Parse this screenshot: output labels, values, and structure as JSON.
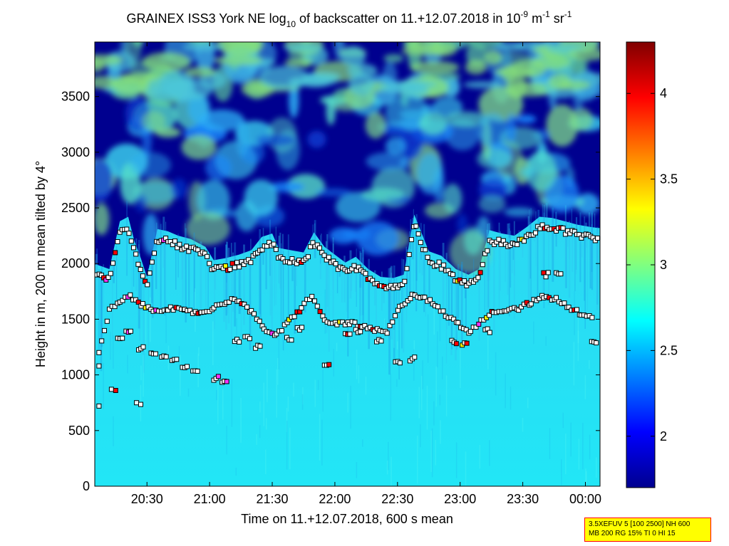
{
  "chart_data": {
    "type": "heatmap",
    "title": {
      "parts": [
        {
          "t": "GRAINEX ISS3 York NE log"
        },
        {
          "t": "10",
          "sub": true
        },
        {
          "t": " of backscatter on 11.+12.07.2018 in 10"
        },
        {
          "t": "-9",
          "sup": true
        },
        {
          "t": " m"
        },
        {
          "t": "-1",
          "sup": true
        },
        {
          "t": " sr"
        },
        {
          "t": "-1",
          "sup": true
        }
      ]
    },
    "xlabel": "Time on 11.+12.07.2018, 600 s mean",
    "ylabel": "Height in m, 200 m mean tilted by 4°",
    "x_ticks": [
      "20:30",
      "21:00",
      "21:30",
      "22:00",
      "22:30",
      "23:00",
      "23:30",
      "00:00"
    ],
    "x_tick_minutes": [
      1230,
      1260,
      1290,
      1320,
      1350,
      1380,
      1410,
      1440
    ],
    "xlim_minutes": [
      1205,
      1447
    ],
    "y_ticks": [
      0,
      500,
      1000,
      1500,
      2000,
      2500,
      3000,
      3500
    ],
    "ylim": [
      0,
      3990
    ],
    "colorbar": {
      "ticks": [
        "2",
        "2.5",
        "3",
        "3.5",
        "4"
      ],
      "tick_values": [
        2,
        2.5,
        3,
        3.5,
        4
      ],
      "lim": [
        1.7,
        4.3
      ],
      "colormap": "jet"
    },
    "layer_boundaries": [
      {
        "time_min": 1206,
        "height": 1990
      },
      {
        "time_min": 1212,
        "height": 1950
      },
      {
        "time_min": 1217,
        "height": 2380
      },
      {
        "time_min": 1221,
        "height": 2420
      },
      {
        "time_min": 1224,
        "height": 2200
      },
      {
        "time_min": 1227,
        "height": 2050
      },
      {
        "time_min": 1230,
        "height": 1880
      },
      {
        "time_min": 1235,
        "height": 2310
      },
      {
        "time_min": 1240,
        "height": 2290
      },
      {
        "time_min": 1245,
        "height": 2250
      },
      {
        "time_min": 1251,
        "height": 2220
      },
      {
        "time_min": 1258,
        "height": 2150
      },
      {
        "time_min": 1262,
        "height": 2030
      },
      {
        "time_min": 1268,
        "height": 2050
      },
      {
        "time_min": 1274,
        "height": 2080
      },
      {
        "time_min": 1280,
        "height": 2120
      },
      {
        "time_min": 1285,
        "height": 2240
      },
      {
        "time_min": 1290,
        "height": 2270
      },
      {
        "time_min": 1293,
        "height": 2140
      },
      {
        "time_min": 1299,
        "height": 2120
      },
      {
        "time_min": 1305,
        "height": 2100
      },
      {
        "time_min": 1310,
        "height": 2280
      },
      {
        "time_min": 1315,
        "height": 2150
      },
      {
        "time_min": 1320,
        "height": 2080
      },
      {
        "time_min": 1325,
        "height": 2010
      },
      {
        "time_min": 1330,
        "height": 2060
      },
      {
        "time_min": 1336,
        "height": 1950
      },
      {
        "time_min": 1342,
        "height": 1880
      },
      {
        "time_min": 1348,
        "height": 1870
      },
      {
        "time_min": 1353,
        "height": 1900
      },
      {
        "time_min": 1358,
        "height": 2440
      },
      {
        "time_min": 1365,
        "height": 2110
      },
      {
        "time_min": 1371,
        "height": 2070
      },
      {
        "time_min": 1378,
        "height": 1950
      },
      {
        "time_min": 1384,
        "height": 1900
      },
      {
        "time_min": 1389,
        "height": 1950
      },
      {
        "time_min": 1394,
        "height": 2300
      },
      {
        "time_min": 1400,
        "height": 2270
      },
      {
        "time_min": 1406,
        "height": 2250
      },
      {
        "time_min": 1412,
        "height": 2330
      },
      {
        "time_min": 1418,
        "height": 2420
      },
      {
        "time_min": 1424,
        "height": 2410
      },
      {
        "time_min": 1430,
        "height": 2380
      },
      {
        "time_min": 1436,
        "height": 2350
      },
      {
        "time_min": 1442,
        "height": 2330
      },
      {
        "time_min": 1446,
        "height": 2320
      }
    ]
  },
  "info_box": {
    "line1": "3.5XEFUV 5 [100 2500] NH 600",
    "line2": "MB 200 RG 15% TI 0 HI 15"
  },
  "colors": {
    "frame": "#000000",
    "marker_fill": "#ffffff",
    "marker_edge": "#000000",
    "info_box_bg": "#ffff00",
    "info_box_border": "#ff0000"
  }
}
